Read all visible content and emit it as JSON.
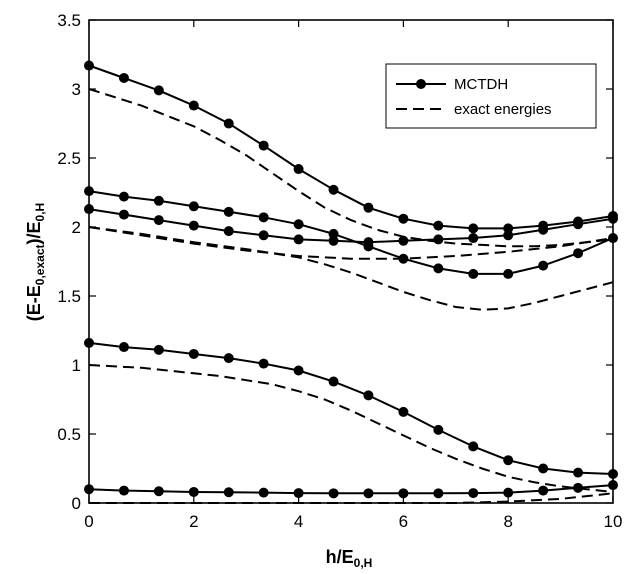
{
  "chart_data": {
    "type": "line",
    "xlim": [
      0,
      10
    ],
    "ylim": [
      0,
      3.5
    ],
    "x_ticks": [
      0,
      2,
      4,
      6,
      8,
      10
    ],
    "y_ticks": [
      0,
      0.5,
      1,
      1.5,
      2,
      2.5,
      3,
      3.5
    ],
    "x_tick_labels": [
      "0",
      "2",
      "4",
      "6",
      "8",
      "10"
    ],
    "y_tick_labels": [
      "0",
      "0.5",
      "1",
      "1.5",
      "2",
      "2.5",
      "3",
      "3.5"
    ],
    "xlabel": {
      "main": "h/E",
      "sub": "0,H"
    },
    "ylabel": {
      "part1": "(E-E",
      "sub1": "0,exact",
      "part2": ")/E",
      "sub2": "0,H"
    },
    "grid": false,
    "legend_position": "top-right",
    "series": [
      {
        "name": "MCTDH",
        "style": "solid-markers",
        "curves": [
          {
            "x": [
              0,
              0.667,
              1.333,
              2,
              2.667,
              3.333,
              4,
              4.667,
              5.333,
              6,
              6.667,
              7.333,
              8,
              8.667,
              9.333,
              10
            ],
            "y": [
              0.1,
              0.09,
              0.085,
              0.08,
              0.078,
              0.075,
              0.072,
              0.07,
              0.07,
              0.07,
              0.07,
              0.072,
              0.075,
              0.09,
              0.11,
              0.13
            ]
          },
          {
            "x": [
              0,
              0.667,
              1.333,
              2,
              2.667,
              3.333,
              4,
              4.667,
              5.333,
              6,
              6.667,
              7.333,
              8,
              8.667,
              9.333,
              10
            ],
            "y": [
              1.16,
              1.13,
              1.11,
              1.08,
              1.05,
              1.01,
              0.96,
              0.88,
              0.78,
              0.66,
              0.53,
              0.41,
              0.31,
              0.25,
              0.22,
              0.21
            ]
          },
          {
            "x": [
              0,
              0.667,
              1.333,
              2,
              2.667,
              3.333,
              4,
              4.667,
              5.333,
              6,
              6.667,
              7.333,
              8,
              8.667,
              9.333,
              10
            ],
            "y": [
              2.13,
              2.09,
              2.05,
              2.01,
              1.97,
              1.94,
              1.91,
              1.9,
              1.89,
              1.9,
              1.91,
              1.92,
              1.94,
              1.98,
              2.02,
              2.06
            ]
          },
          {
            "x": [
              0,
              0.667,
              1.333,
              2,
              2.667,
              3.333,
              4,
              4.667,
              5.333,
              6,
              6.667,
              7.333,
              8,
              8.667,
              9.333,
              10
            ],
            "y": [
              2.26,
              2.22,
              2.19,
              2.15,
              2.11,
              2.07,
              2.02,
              1.95,
              1.86,
              1.77,
              1.7,
              1.66,
              1.66,
              1.72,
              1.81,
              1.92
            ]
          },
          {
            "x": [
              0,
              0.667,
              1.333,
              2,
              2.667,
              3.333,
              4,
              4.667,
              5.333,
              6,
              6.667,
              7.333,
              8,
              8.667,
              9.333,
              10
            ],
            "y": [
              3.17,
              3.08,
              2.99,
              2.88,
              2.75,
              2.59,
              2.42,
              2.27,
              2.14,
              2.06,
              2.01,
              1.99,
              1.99,
              2.01,
              2.04,
              2.08
            ]
          }
        ]
      },
      {
        "name": "exact energies",
        "style": "dashed",
        "curves": [
          {
            "x": [
              0,
              1,
              2,
              3,
              4,
              5,
              6,
              7,
              8,
              9,
              10
            ],
            "y": [
              0.0,
              0.0,
              0.0,
              0.0,
              0.0,
              0.0,
              0.0,
              0.0,
              0.01,
              0.03,
              0.07
            ]
          },
          {
            "x": [
              0,
              0.5,
              1,
              1.5,
              2,
              2.5,
              3,
              3.5,
              4,
              4.5,
              5,
              5.5,
              6,
              6.5,
              7,
              7.5,
              8,
              8.5,
              9,
              9.5,
              10
            ],
            "y": [
              1.0,
              0.99,
              0.98,
              0.96,
              0.94,
              0.92,
              0.89,
              0.86,
              0.81,
              0.75,
              0.67,
              0.58,
              0.49,
              0.4,
              0.32,
              0.25,
              0.19,
              0.15,
              0.12,
              0.1,
              0.08
            ]
          },
          {
            "x": [
              0,
              1,
              2,
              3,
              4,
              5,
              6,
              7,
              8,
              9,
              10
            ],
            "y": [
              2.0,
              1.94,
              1.88,
              1.83,
              1.79,
              1.77,
              1.77,
              1.79,
              1.82,
              1.86,
              1.92
            ]
          },
          {
            "x": [
              0,
              1,
              2,
              3,
              4,
              4.5,
              5,
              5.5,
              6,
              6.5,
              7,
              7.5,
              8,
              8.5,
              9,
              9.5,
              10
            ],
            "y": [
              2.0,
              1.95,
              1.89,
              1.84,
              1.78,
              1.73,
              1.67,
              1.6,
              1.53,
              1.47,
              1.42,
              1.4,
              1.41,
              1.45,
              1.5,
              1.55,
              1.6
            ]
          },
          {
            "x": [
              0,
              1,
              2,
              2.5,
              3,
              3.5,
              4,
              4.5,
              5,
              5.5,
              6,
              6.5,
              7,
              7.5,
              8,
              8.5,
              9,
              9.5,
              10
            ],
            "y": [
              3.0,
              2.88,
              2.73,
              2.63,
              2.52,
              2.39,
              2.26,
              2.14,
              2.05,
              1.98,
              1.93,
              1.9,
              1.88,
              1.87,
              1.86,
              1.86,
              1.87,
              1.89,
              1.91
            ]
          }
        ]
      }
    ]
  }
}
